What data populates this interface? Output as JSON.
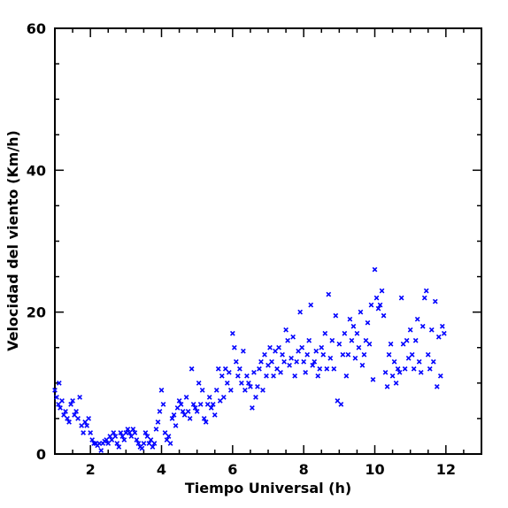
{
  "chart_data": {
    "type": "scatter",
    "title": "",
    "xlabel": "Tiempo Universal (h)",
    "ylabel": "Velocidad del viento (Km/h)",
    "xlim": [
      1,
      13
    ],
    "ylim": [
      0,
      60
    ],
    "xticks": [
      2,
      4,
      6,
      8,
      10,
      12
    ],
    "yticks": [
      0,
      20,
      40,
      60
    ],
    "x_minor_step": 0.5,
    "y_minor_step": 5,
    "grid": false,
    "marker": "x",
    "color": "#0000ff",
    "series": [
      {
        "name": "",
        "points": [
          [
            1.0,
            9.0
          ],
          [
            1.05,
            8.0
          ],
          [
            1.1,
            7.0
          ],
          [
            1.12,
            10.0
          ],
          [
            1.15,
            6.5
          ],
          [
            1.2,
            7.5
          ],
          [
            1.25,
            5.5
          ],
          [
            1.3,
            6.0
          ],
          [
            1.35,
            5.0
          ],
          [
            1.4,
            4.5
          ],
          [
            1.45,
            7.0
          ],
          [
            1.5,
            7.5
          ],
          [
            1.55,
            5.5
          ],
          [
            1.6,
            6.0
          ],
          [
            1.65,
            5.0
          ],
          [
            1.7,
            8.0
          ],
          [
            1.75,
            4.0
          ],
          [
            1.8,
            3.0
          ],
          [
            1.85,
            4.5
          ],
          [
            1.9,
            4.0
          ],
          [
            1.95,
            5.0
          ],
          [
            2.0,
            3.0
          ],
          [
            2.05,
            2.0
          ],
          [
            2.1,
            1.5
          ],
          [
            2.15,
            1.5
          ],
          [
            2.2,
            1.2
          ],
          [
            2.25,
            1.5
          ],
          [
            2.3,
            0.5
          ],
          [
            2.35,
            1.5
          ],
          [
            2.4,
            1.8
          ],
          [
            2.45,
            2.0
          ],
          [
            2.5,
            1.5
          ],
          [
            2.55,
            2.5
          ],
          [
            2.6,
            2.0
          ],
          [
            2.65,
            3.0
          ],
          [
            2.7,
            2.5
          ],
          [
            2.75,
            1.5
          ],
          [
            2.8,
            1.0
          ],
          [
            2.85,
            3.0
          ],
          [
            2.9,
            2.5
          ],
          [
            2.95,
            2.0
          ],
          [
            3.0,
            3.0
          ],
          [
            3.05,
            3.5
          ],
          [
            3.1,
            3.0
          ],
          [
            3.15,
            2.5
          ],
          [
            3.2,
            3.5
          ],
          [
            3.25,
            3.0
          ],
          [
            3.3,
            2.0
          ],
          [
            3.35,
            1.5
          ],
          [
            3.4,
            1.0
          ],
          [
            3.45,
            0.8
          ],
          [
            3.5,
            1.5
          ],
          [
            3.55,
            3.0
          ],
          [
            3.6,
            2.5
          ],
          [
            3.65,
            1.5
          ],
          [
            3.7,
            2.0
          ],
          [
            3.75,
            1.0
          ],
          [
            3.8,
            1.5
          ],
          [
            3.85,
            3.5
          ],
          [
            3.9,
            4.5
          ],
          [
            3.95,
            6.0
          ],
          [
            4.0,
            9.0
          ],
          [
            4.05,
            7.0
          ],
          [
            4.1,
            3.0
          ],
          [
            4.15,
            2.0
          ],
          [
            4.2,
            2.5
          ],
          [
            4.25,
            1.5
          ],
          [
            4.3,
            5.0
          ],
          [
            4.35,
            5.5
          ],
          [
            4.4,
            4.0
          ],
          [
            4.45,
            6.5
          ],
          [
            4.5,
            7.5
          ],
          [
            4.55,
            7.0
          ],
          [
            4.6,
            6.0
          ],
          [
            4.65,
            5.5
          ],
          [
            4.7,
            8.0
          ],
          [
            4.75,
            6.0
          ],
          [
            4.8,
            5.0
          ],
          [
            4.85,
            12.0
          ],
          [
            4.9,
            7.0
          ],
          [
            4.95,
            6.5
          ],
          [
            5.0,
            6.0
          ],
          [
            5.05,
            10.0
          ],
          [
            5.1,
            7.0
          ],
          [
            5.15,
            9.0
          ],
          [
            5.2,
            5.0
          ],
          [
            5.25,
            4.5
          ],
          [
            5.3,
            7.0
          ],
          [
            5.35,
            8.0
          ],
          [
            5.4,
            6.5
          ],
          [
            5.45,
            7.0
          ],
          [
            5.5,
            5.5
          ],
          [
            5.55,
            9.0
          ],
          [
            5.6,
            12.0
          ],
          [
            5.65,
            7.5
          ],
          [
            5.7,
            11.0
          ],
          [
            5.75,
            8.0
          ],
          [
            5.8,
            12.0
          ],
          [
            5.85,
            10.0
          ],
          [
            5.9,
            11.5
          ],
          [
            5.95,
            9.0
          ],
          [
            6.0,
            17.0
          ],
          [
            6.05,
            15.0
          ],
          [
            6.1,
            13.0
          ],
          [
            6.15,
            11.0
          ],
          [
            6.2,
            12.0
          ],
          [
            6.25,
            10.0
          ],
          [
            6.3,
            14.5
          ],
          [
            6.35,
            9.0
          ],
          [
            6.4,
            11.0
          ],
          [
            6.45,
            10.0
          ],
          [
            6.5,
            9.5
          ],
          [
            6.55,
            6.5
          ],
          [
            6.6,
            11.5
          ],
          [
            6.65,
            8.0
          ],
          [
            6.7,
            9.5
          ],
          [
            6.75,
            12.0
          ],
          [
            6.8,
            13.0
          ],
          [
            6.85,
            9.0
          ],
          [
            6.9,
            14.0
          ],
          [
            6.95,
            11.0
          ],
          [
            7.0,
            12.5
          ],
          [
            7.05,
            15.0
          ],
          [
            7.1,
            13.0
          ],
          [
            7.15,
            11.0
          ],
          [
            7.2,
            14.5
          ],
          [
            7.25,
            12.0
          ],
          [
            7.3,
            15.0
          ],
          [
            7.35,
            11.5
          ],
          [
            7.4,
            14.0
          ],
          [
            7.45,
            13.0
          ],
          [
            7.5,
            17.5
          ],
          [
            7.55,
            16.0
          ],
          [
            7.6,
            12.5
          ],
          [
            7.65,
            13.5
          ],
          [
            7.7,
            16.5
          ],
          [
            7.75,
            11.0
          ],
          [
            7.8,
            13.0
          ],
          [
            7.85,
            14.5
          ],
          [
            7.9,
            20.0
          ],
          [
            7.95,
            15.0
          ],
          [
            8.0,
            13.0
          ],
          [
            8.05,
            11.5
          ],
          [
            8.1,
            14.0
          ],
          [
            8.15,
            16.0
          ],
          [
            8.2,
            21.0
          ],
          [
            8.25,
            12.5
          ],
          [
            8.3,
            13.0
          ],
          [
            8.35,
            14.5
          ],
          [
            8.4,
            11.0
          ],
          [
            8.45,
            12.0
          ],
          [
            8.5,
            15.0
          ],
          [
            8.55,
            14.0
          ],
          [
            8.6,
            17.0
          ],
          [
            8.65,
            12.0
          ],
          [
            8.7,
            22.5
          ],
          [
            8.75,
            13.5
          ],
          [
            8.8,
            16.0
          ],
          [
            8.85,
            12.0
          ],
          [
            8.9,
            19.5
          ],
          [
            8.95,
            7.5
          ],
          [
            9.0,
            15.5
          ],
          [
            9.05,
            7.0
          ],
          [
            9.1,
            14.0
          ],
          [
            9.15,
            17.0
          ],
          [
            9.2,
            11.0
          ],
          [
            9.25,
            14.0
          ],
          [
            9.3,
            19.0
          ],
          [
            9.35,
            16.0
          ],
          [
            9.4,
            18.0
          ],
          [
            9.45,
            13.5
          ],
          [
            9.5,
            17.0
          ],
          [
            9.55,
            15.0
          ],
          [
            9.6,
            20.0
          ],
          [
            9.65,
            12.5
          ],
          [
            9.7,
            14.0
          ],
          [
            9.75,
            16.0
          ],
          [
            9.8,
            18.5
          ],
          [
            9.85,
            15.5
          ],
          [
            9.9,
            21.0
          ],
          [
            9.95,
            10.5
          ],
          [
            10.0,
            26.0
          ],
          [
            10.05,
            22.0
          ],
          [
            10.1,
            20.5
          ],
          [
            10.15,
            21.0
          ],
          [
            10.2,
            23.0
          ],
          [
            10.25,
            19.5
          ],
          [
            10.3,
            11.5
          ],
          [
            10.35,
            9.5
          ],
          [
            10.4,
            14.0
          ],
          [
            10.45,
            15.5
          ],
          [
            10.5,
            11.0
          ],
          [
            10.55,
            13.0
          ],
          [
            10.6,
            10.0
          ],
          [
            10.65,
            12.0
          ],
          [
            10.7,
            11.5
          ],
          [
            10.75,
            22.0
          ],
          [
            10.8,
            15.5
          ],
          [
            10.85,
            12.0
          ],
          [
            10.9,
            16.0
          ],
          [
            10.95,
            13.5
          ],
          [
            11.0,
            17.5
          ],
          [
            11.05,
            14.0
          ],
          [
            11.1,
            12.0
          ],
          [
            11.15,
            16.0
          ],
          [
            11.2,
            19.0
          ],
          [
            11.25,
            13.0
          ],
          [
            11.3,
            11.5
          ],
          [
            11.35,
            18.0
          ],
          [
            11.4,
            22.0
          ],
          [
            11.45,
            23.0
          ],
          [
            11.5,
            14.0
          ],
          [
            11.55,
            12.0
          ],
          [
            11.6,
            17.5
          ],
          [
            11.65,
            13.0
          ],
          [
            11.7,
            21.5
          ],
          [
            11.75,
            9.5
          ],
          [
            11.8,
            16.5
          ],
          [
            11.85,
            11.0
          ],
          [
            11.9,
            18.0
          ],
          [
            11.95,
            17.0
          ]
        ]
      }
    ]
  }
}
